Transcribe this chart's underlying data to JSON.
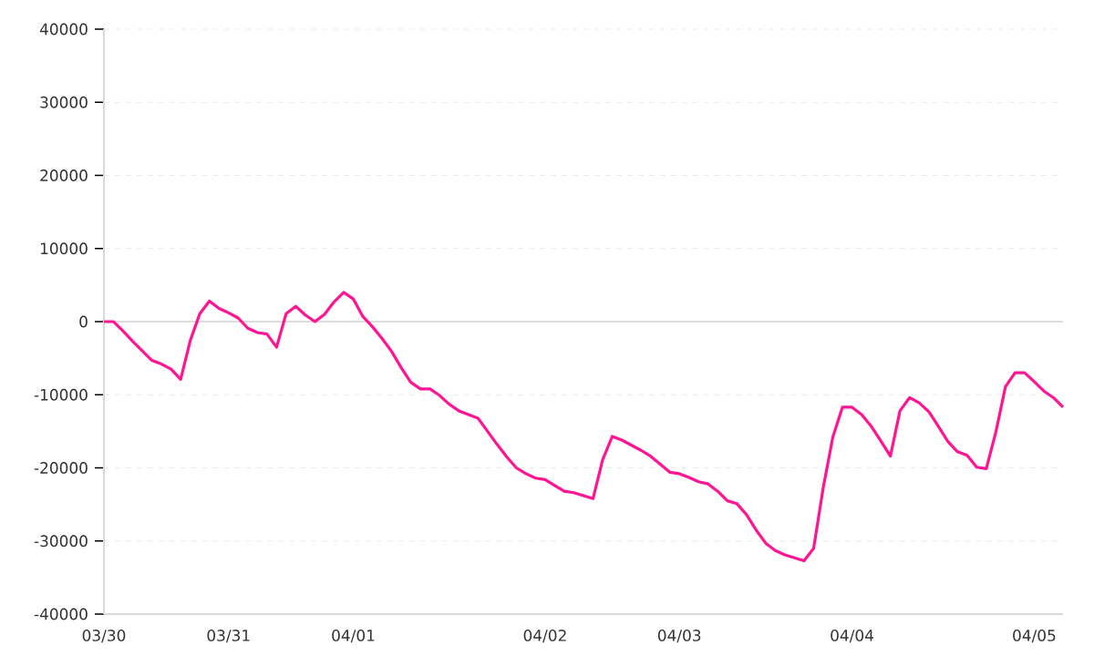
{
  "chart_data": {
    "type": "line",
    "categories": [
      "03/30",
      null,
      null,
      null,
      null,
      null,
      null,
      null,
      null,
      null,
      null,
      null,
      null,
      "03/31",
      null,
      null,
      null,
      null,
      null,
      null,
      null,
      null,
      null,
      null,
      null,
      null,
      "04/01",
      null,
      null,
      null,
      null,
      null,
      null,
      null,
      null,
      null,
      null,
      null,
      null,
      null,
      null,
      null,
      null,
      null,
      null,
      null,
      "04/02",
      null,
      null,
      null,
      null,
      null,
      null,
      null,
      null,
      null,
      null,
      null,
      null,
      null,
      "04/03",
      null,
      null,
      null,
      null,
      null,
      null,
      null,
      null,
      null,
      null,
      null,
      null,
      null,
      null,
      null,
      null,
      null,
      "04/04",
      null,
      null,
      null,
      null,
      null,
      null,
      null,
      null,
      null,
      null,
      null,
      null,
      null,
      null,
      null,
      null,
      null,
      null,
      "04/05",
      null,
      null,
      null
    ],
    "series": [
      {
        "color": "#ff1493",
        "values": [
          0,
          0,
          -1300,
          -2700,
          -4000,
          -5300,
          -5800,
          -6500,
          -7900,
          -2600,
          1100,
          2800,
          1800,
          1200,
          500,
          -900,
          -1500,
          -1700,
          -3500,
          1100,
          2100,
          900,
          0,
          1000,
          2700,
          4000,
          3100,
          700,
          -700,
          -2300,
          -4100,
          -6300,
          -8300,
          -9200,
          -9200,
          -10100,
          -11300,
          -12200,
          -12700,
          -13200,
          -15000,
          -16800,
          -18500,
          -20000,
          -20800,
          -21400,
          -21600,
          -22400,
          -23200,
          -23400,
          -23800,
          -24200,
          -18900,
          -15700,
          -16200,
          -16900,
          -17600,
          -18400,
          -19500,
          -20600,
          -20800,
          -21300,
          -21900,
          -22200,
          -23200,
          -24500,
          -24900,
          -26400,
          -28500,
          -30300,
          -31300,
          -31900,
          -32300,
          -32700,
          -31000,
          -22700,
          -15800,
          -11700,
          -11700,
          -12700,
          -14300,
          -16300,
          -18400,
          -12200,
          -10400,
          -11100,
          -12300,
          -14300,
          -16400,
          -17800,
          -18300,
          -19900,
          -20100,
          -15100,
          -8900,
          -7000,
          -7000,
          -8200,
          -9500,
          -10400,
          -11700
        ]
      }
    ],
    "ylim": [
      -40000,
      40000
    ],
    "yticks": [
      -40000,
      -30000,
      -20000,
      -10000,
      0,
      10000,
      20000,
      30000,
      40000
    ],
    "grid": "y",
    "ref_lines": [
      {
        "axis": "y",
        "value": 0,
        "color": "#dddddd"
      }
    ],
    "marker": "none",
    "line_style": "solid"
  }
}
